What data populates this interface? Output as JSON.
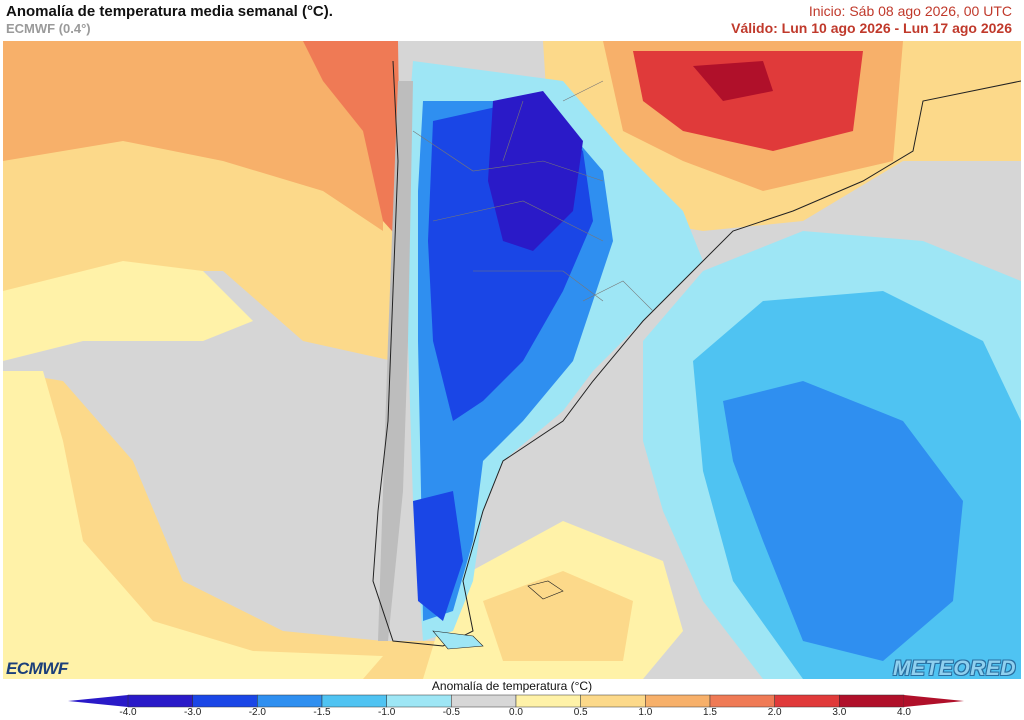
{
  "header": {
    "title": "Anomalía de temperatura media semanal (°C).",
    "model": "ECMWF (0.4°)",
    "init": "Inicio: Sáb 08 ago 2026, 00 UTC",
    "valid": "Válido: Lun 10 ago 2026 - Lun 17 ago 2026"
  },
  "logos": {
    "left": "ECMWF",
    "right": "METEORED"
  },
  "legend": {
    "title": "Anomalía de temperatura (°C)",
    "ticks": [
      "-4.0",
      "-3.0",
      "-2.0",
      "-1.5",
      "-1.0",
      "-0.5",
      "0.0",
      "0.5",
      "1.0",
      "1.5",
      "2.0",
      "3.0",
      "4.0"
    ],
    "colors": [
      "#2a1ac8",
      "#1a46e6",
      "#2f8ff0",
      "#4fc3f2",
      "#9ee6f5",
      "#d7d7d7",
      "#d7d7d7",
      "#fff2a8",
      "#fcd98a",
      "#f7b06a",
      "#ef7a55",
      "#e03a3a",
      "#b0102a"
    ]
  },
  "colors": {
    "ocean_neutral": "#d6d6d6",
    "warm_light": "#fff2a8",
    "warm_mid": "#fcd98a",
    "warm_orange": "#f7b06a",
    "warm_red": "#e03a3a",
    "cold_light": "#9ee6f5",
    "cold_mid": "#4fc3f2",
    "cold_strong": "#2f8ff0",
    "cold_deep": "#1a46e6",
    "cold_darkest": "#2a1ac8"
  }
}
